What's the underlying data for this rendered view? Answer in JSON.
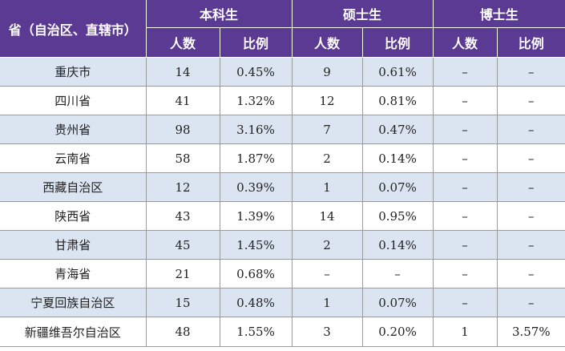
{
  "header": {
    "province_col": "省（自治区、直辖市）",
    "groups": [
      "本科生",
      "硕士生",
      "博士生"
    ],
    "sub_count": "人数",
    "sub_ratio": "比例"
  },
  "rows": [
    [
      "重庆市",
      "14",
      "0.45%",
      "9",
      "0.61%",
      "–",
      "–"
    ],
    [
      "四川省",
      "41",
      "1.32%",
      "12",
      "0.81%",
      "–",
      "–"
    ],
    [
      "贵州省",
      "98",
      "3.16%",
      "7",
      "0.47%",
      "–",
      "–"
    ],
    [
      "云南省",
      "58",
      "1.87%",
      "2",
      "0.14%",
      "–",
      "–"
    ],
    [
      "西藏自治区",
      "12",
      "0.39%",
      "1",
      "0.07%",
      "–",
      "–"
    ],
    [
      "陕西省",
      "43",
      "1.39%",
      "14",
      "0.95%",
      "–",
      "–"
    ],
    [
      "甘肃省",
      "45",
      "1.45%",
      "2",
      "0.14%",
      "–",
      "–"
    ],
    [
      "青海省",
      "21",
      "0.68%",
      "–",
      "–",
      "–",
      "–"
    ],
    [
      "宁夏回族自治区",
      "15",
      "0.48%",
      "1",
      "0.07%",
      "–",
      "–"
    ],
    [
      "新疆维吾尔自治区",
      "48",
      "1.55%",
      "3",
      "0.20%",
      "1",
      "3.57%"
    ]
  ],
  "colors": {
    "header_bg": "#5b3a93",
    "header_text": "#ffffff",
    "row_shade": "#dbe5f1",
    "row_plain": "#ffffff"
  }
}
